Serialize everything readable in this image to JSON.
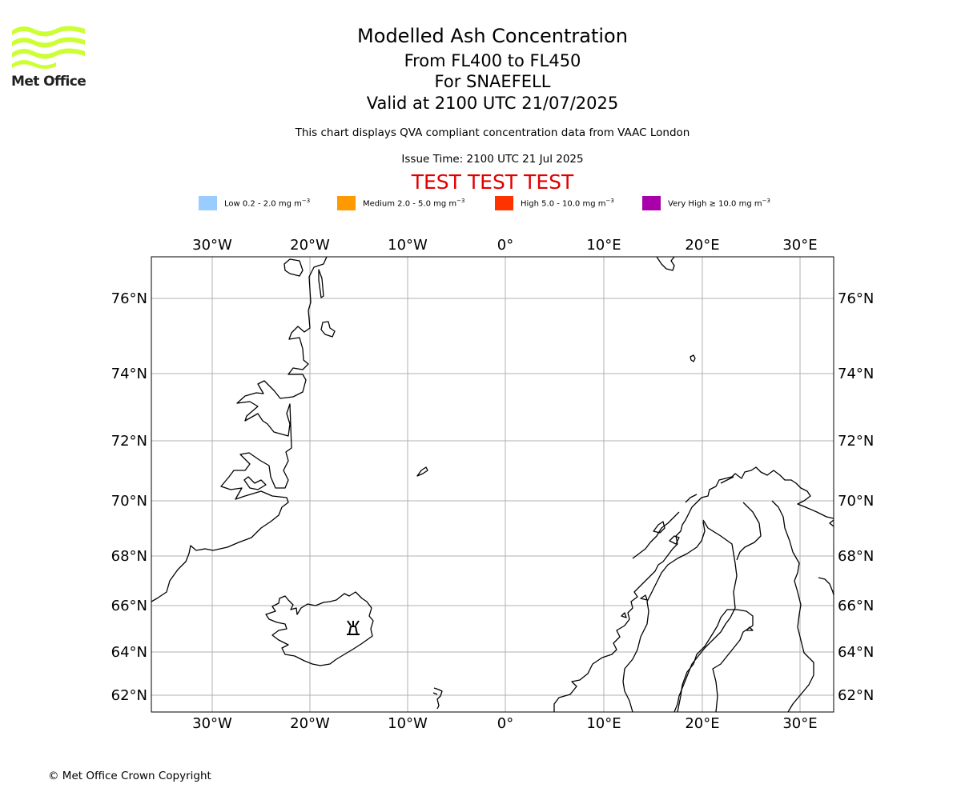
{
  "header": {
    "title": "Modelled Ash Concentration",
    "level_range": "From FL400 to FL450",
    "volcano": "For SNAEFELL",
    "valid_time": "Valid at 2100 UTC 21/07/2025",
    "compliance_note": "This chart displays QVA compliant concentration data from VAAC London",
    "issue_time": "Issue Time: 2100 UTC 21 Jul 2025",
    "test_banner": "TEST TEST TEST"
  },
  "logo": {
    "text": "Met Office",
    "color": "#ccff33"
  },
  "legend": [
    {
      "label": "Low 0.2 - 2.0 mg m",
      "exponent": "−3",
      "color": "#99ccff"
    },
    {
      "label": "Medium 2.0 - 5.0 mg m",
      "exponent": "−3",
      "color": "#ff9900"
    },
    {
      "label": "High 5.0 - 10.0 mg m",
      "exponent": "−3",
      "color": "#ff3300"
    },
    {
      "label": "Very High  ≥  10.0 mg m",
      "exponent": "−3",
      "color": "#aa00aa"
    }
  ],
  "map": {
    "longitude_ticks": [
      "30°W",
      "20°W",
      "10°W",
      "0°",
      "10°E",
      "20°E",
      "30°E"
    ],
    "latitude_ticks": [
      "76°N",
      "74°N",
      "72°N",
      "70°N",
      "68°N",
      "66°N",
      "64°N",
      "62°N"
    ],
    "volcano_symbol": "volcano-icon",
    "ash_areas": []
  },
  "footer": {
    "copyright": "© Met Office Crown Copyright"
  }
}
